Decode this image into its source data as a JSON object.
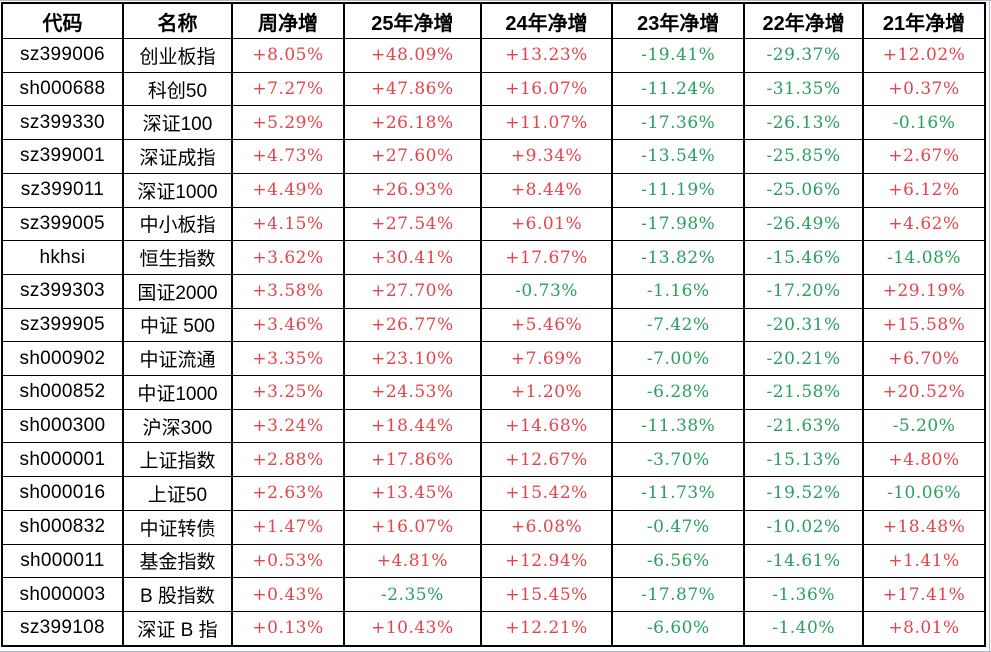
{
  "colors": {
    "positive": "#e4444a",
    "negative": "#28a05e",
    "border": "#000000",
    "grid_edge": "#a9b9d1"
  },
  "table": {
    "columns": [
      "代码",
      "名称",
      "周净增",
      "25年净增",
      "24年净增",
      "23年净增",
      "22年净增",
      "21年净增"
    ],
    "rows": [
      {
        "code": "sz399006",
        "name": "创业板指",
        "values": [
          "+8.05%",
          "+48.09%",
          "+13.23%",
          "-19.41%",
          "-29.37%",
          "+12.02%"
        ]
      },
      {
        "code": "sh000688",
        "name": "科创50",
        "values": [
          "+7.27%",
          "+47.86%",
          "+16.07%",
          "-11.24%",
          "-31.35%",
          "+0.37%"
        ]
      },
      {
        "code": "sz399330",
        "name": "深证100",
        "values": [
          "+5.29%",
          "+26.18%",
          "+11.07%",
          "-17.36%",
          "-26.13%",
          "-0.16%"
        ]
      },
      {
        "code": "sz399001",
        "name": "深证成指",
        "values": [
          "+4.73%",
          "+27.60%",
          "+9.34%",
          "-13.54%",
          "-25.85%",
          "+2.67%"
        ]
      },
      {
        "code": "sz399011",
        "name": "深证1000",
        "values": [
          "+4.49%",
          "+26.93%",
          "+8.44%",
          "-11.19%",
          "-25.06%",
          "+6.12%"
        ]
      },
      {
        "code": "sz399005",
        "name": "中小板指",
        "values": [
          "+4.15%",
          "+27.54%",
          "+6.01%",
          "-17.98%",
          "-26.49%",
          "+4.62%"
        ]
      },
      {
        "code": "hkhsi",
        "name": "恒生指数",
        "values": [
          "+3.62%",
          "+30.41%",
          "+17.67%",
          "-13.82%",
          "-15.46%",
          "-14.08%"
        ]
      },
      {
        "code": "sz399303",
        "name": "国证2000",
        "values": [
          "+3.58%",
          "+27.70%",
          "-0.73%",
          "-1.16%",
          "-17.20%",
          "+29.19%"
        ]
      },
      {
        "code": "sz399905",
        "name": "中证 500",
        "values": [
          "+3.46%",
          "+26.77%",
          "+5.46%",
          "-7.42%",
          "-20.31%",
          "+15.58%"
        ]
      },
      {
        "code": "sh000902",
        "name": "中证流通",
        "values": [
          "+3.35%",
          "+23.10%",
          "+7.69%",
          "-7.00%",
          "-20.21%",
          "+6.70%"
        ]
      },
      {
        "code": "sh000852",
        "name": "中证1000",
        "values": [
          "+3.25%",
          "+24.53%",
          "+1.20%",
          "-6.28%",
          "-21.58%",
          "+20.52%"
        ]
      },
      {
        "code": "sh000300",
        "name": "沪深300",
        "values": [
          "+3.24%",
          "+18.44%",
          "+14.68%",
          "-11.38%",
          "-21.63%",
          "-5.20%"
        ]
      },
      {
        "code": "sh000001",
        "name": "上证指数",
        "values": [
          "+2.88%",
          "+17.86%",
          "+12.67%",
          "-3.70%",
          "-15.13%",
          "+4.80%"
        ]
      },
      {
        "code": "sh000016",
        "name": "上证50",
        "values": [
          "+2.63%",
          "+13.45%",
          "+15.42%",
          "-11.73%",
          "-19.52%",
          "-10.06%"
        ]
      },
      {
        "code": "sh000832",
        "name": "中证转债",
        "values": [
          "+1.47%",
          "+16.07%",
          "+6.08%",
          "-0.47%",
          "-10.02%",
          "+18.48%"
        ]
      },
      {
        "code": "sh000011",
        "name": "基金指数",
        "values": [
          "+0.53%",
          "+4.81%",
          "+12.94%",
          "-6.56%",
          "-14.61%",
          "+1.41%"
        ]
      },
      {
        "code": "sh000003",
        "name": "B 股指数",
        "values": [
          "+0.43%",
          "-2.35%",
          "+15.45%",
          "-17.87%",
          "-1.36%",
          "+17.41%"
        ]
      },
      {
        "code": "sz399108",
        "name": "深证 B 指",
        "values": [
          "+0.13%",
          "+10.43%",
          "+12.21%",
          "-6.60%",
          "-1.40%",
          "+8.01%"
        ]
      }
    ]
  }
}
